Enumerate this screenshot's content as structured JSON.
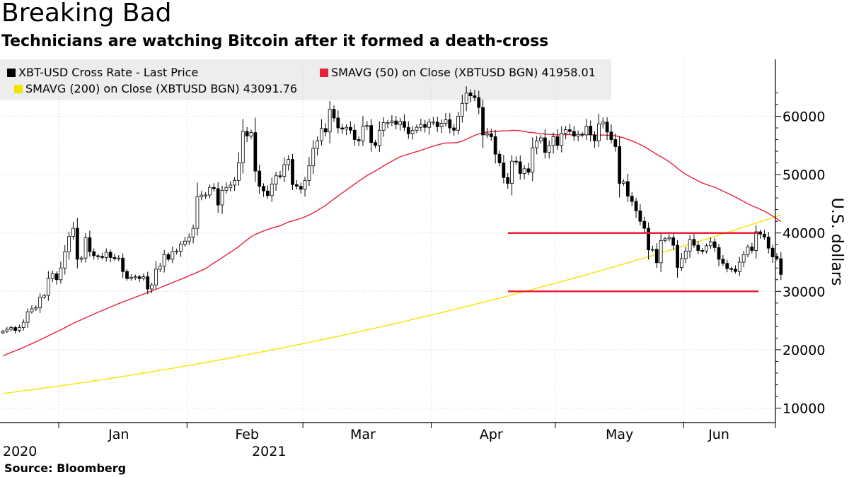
{
  "headline": "Breaking Bad",
  "subhead": "Technicians are watching Bitcoin after it formed a death-cross",
  "source": "Source: Bloomberg",
  "legend": {
    "price": {
      "label": "XBT-USD Cross Rate - Last Price",
      "color": "#000000"
    },
    "sma50": {
      "label": "SMAVG (50)  on Close (XBTUSD BGN) 41958.01",
      "color": "#e8213b"
    },
    "sma200": {
      "label": "SMAVG (200)  on Close (XBTUSD BGN) 43091.76",
      "color": "#f5e400"
    }
  },
  "chart_data": {
    "type": "candlestick",
    "title": "Breaking Bad",
    "subtitle": "Technicians are watching Bitcoin after it formed a death-cross",
    "ylabel": "U.S. dollars",
    "ylim": [
      8000,
      68000
    ],
    "yticks": [
      10000,
      20000,
      30000,
      40000,
      50000,
      60000
    ],
    "ytick_labels": [
      "10000",
      "20000",
      "30000",
      "40000",
      "50000",
      "60000"
    ],
    "x_range": [
      "2020-12-18",
      "2021-06-22"
    ],
    "months": [
      {
        "label": "Jan",
        "start": 14,
        "mid": 28
      },
      {
        "label": "Feb",
        "start": 45,
        "mid": 59
      },
      {
        "label": "Mar",
        "start": 73,
        "mid": 87
      },
      {
        "label": "Apr",
        "start": 104,
        "mid": 118
      },
      {
        "label": "May",
        "start": 134,
        "mid": 149
      },
      {
        "label": "Jun",
        "start": 165,
        "mid": 173
      }
    ],
    "year_labels": [
      {
        "label": "2020",
        "index": 0
      },
      {
        "label": "2021",
        "index": 45
      }
    ],
    "price_close": [
      23200,
      23500,
      23800,
      23300,
      23800,
      24700,
      26500,
      27000,
      27200,
      29000,
      29300,
      32200,
      33000,
      32000,
      34000,
      36800,
      39400,
      40800,
      35500,
      35700,
      39200,
      36800,
      36100,
      36000,
      35800,
      36700,
      35800,
      35600,
      35700,
      33400,
      32200,
      32400,
      32500,
      32200,
      32500,
      30400,
      31100,
      33800,
      34300,
      36300,
      35500,
      36800,
      36900,
      38100,
      38600,
      39300,
      40800,
      46200,
      46500,
      46500,
      47800,
      47600,
      44800,
      47300,
      47800,
      48200,
      49000,
      52000,
      57400,
      56600,
      57200,
      50600,
      48000,
      47200,
      46400,
      48400,
      49800,
      49700,
      51700,
      52600,
      48300,
      48000,
      47500,
      49000,
      51500,
      54500,
      55800,
      57900,
      57300,
      61200,
      59700,
      58000,
      57800,
      58100,
      57600,
      56000,
      55800,
      58300,
      58400,
      55500,
      55000,
      57600,
      58900,
      58900,
      59200,
      58600,
      59100,
      58100,
      57000,
      57600,
      58100,
      58600,
      58100,
      59000,
      59000,
      58200,
      58800,
      59400,
      58000,
      57600,
      60000,
      62200,
      64000,
      63500,
      63200,
      61500,
      56800,
      57000,
      56500,
      53500,
      52000,
      49500,
      48500,
      52300,
      52200,
      50200,
      51000,
      50400,
      54600,
      55800,
      56300,
      53800,
      55000,
      56500,
      55000,
      57100,
      57700,
      57400,
      56600,
      56900,
      56800,
      58300,
      56800,
      55800,
      58700,
      59000,
      57300,
      56000,
      54800,
      48500,
      48800,
      46300,
      45400,
      43800,
      42000,
      40800,
      37100,
      37200,
      34900,
      38700,
      39000,
      39200,
      37900,
      34100,
      35600,
      36900,
      38900,
      37900,
      37000,
      36900,
      37800,
      38500,
      37500,
      35500,
      34800,
      33900,
      33800,
      33400,
      35000,
      36300,
      37600,
      37000,
      40200,
      39800,
      39300,
      37400,
      35900,
      35600,
      32900
    ]
  },
  "sma200_end": 43091.76,
  "sma50_end": 41958.01,
  "hlines": [
    40000,
    30000
  ]
}
